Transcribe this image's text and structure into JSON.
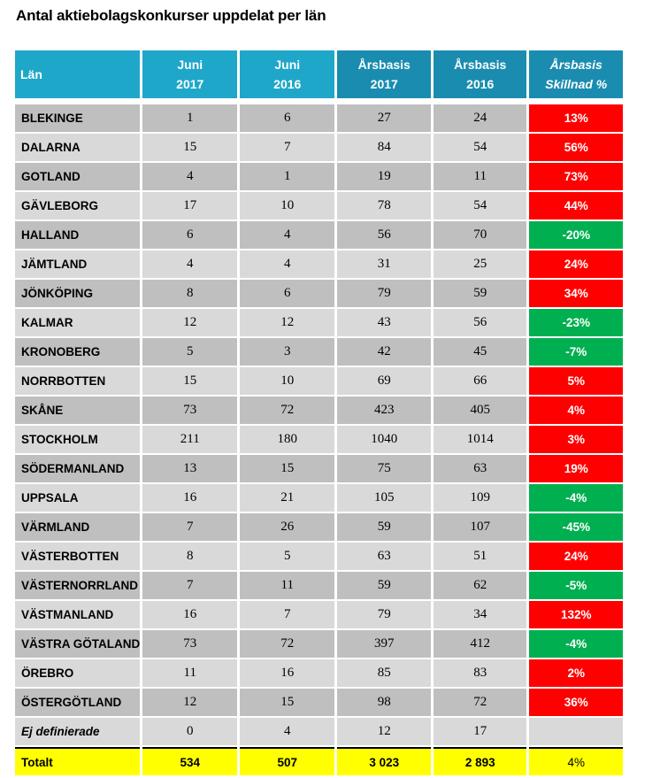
{
  "title": "Antal aktiebolagskonkurser uppdelat per län",
  "headers": [
    {
      "l1": "Län",
      "l2": ""
    },
    {
      "l1": "Juni",
      "l2": "2017"
    },
    {
      "l1": "Juni",
      "l2": "2016"
    },
    {
      "l1": "Årsbasis",
      "l2": "2017"
    },
    {
      "l1": "Årsbasis",
      "l2": "2016"
    },
    {
      "l1": "Årsbasis",
      "l2": "Skillnad %"
    }
  ],
  "colors": {
    "red": "#ff0000",
    "green": "#00b050",
    "total": "#ffff00"
  },
  "rows": [
    {
      "lan": "BLEKINGE",
      "j17": "1",
      "j16": "6",
      "a17": "27",
      "a16": "24",
      "diff": "13%",
      "c": "red"
    },
    {
      "lan": "DALARNA",
      "j17": "15",
      "j16": "7",
      "a17": "84",
      "a16": "54",
      "diff": "56%",
      "c": "red"
    },
    {
      "lan": "GOTLAND",
      "j17": "4",
      "j16": "1",
      "a17": "19",
      "a16": "11",
      "diff": "73%",
      "c": "red"
    },
    {
      "lan": "GÄVLEBORG",
      "j17": "17",
      "j16": "10",
      "a17": "78",
      "a16": "54",
      "diff": "44%",
      "c": "red"
    },
    {
      "lan": "HALLAND",
      "j17": "6",
      "j16": "4",
      "a17": "56",
      "a16": "70",
      "diff": "-20%",
      "c": "green"
    },
    {
      "lan": "JÄMTLAND",
      "j17": "4",
      "j16": "4",
      "a17": "31",
      "a16": "25",
      "diff": "24%",
      "c": "red"
    },
    {
      "lan": "JÖNKÖPING",
      "j17": "8",
      "j16": "6",
      "a17": "79",
      "a16": "59",
      "diff": "34%",
      "c": "red"
    },
    {
      "lan": "KALMAR",
      "j17": "12",
      "j16": "12",
      "a17": "43",
      "a16": "56",
      "diff": "-23%",
      "c": "green"
    },
    {
      "lan": "KRONOBERG",
      "j17": "5",
      "j16": "3",
      "a17": "42",
      "a16": "45",
      "diff": "-7%",
      "c": "green"
    },
    {
      "lan": "NORRBOTTEN",
      "j17": "15",
      "j16": "10",
      "a17": "69",
      "a16": "66",
      "diff": "5%",
      "c": "red"
    },
    {
      "lan": "SKÅNE",
      "j17": "73",
      "j16": "72",
      "a17": "423",
      "a16": "405",
      "diff": "4%",
      "c": "red"
    },
    {
      "lan": "STOCKHOLM",
      "j17": "211",
      "j16": "180",
      "a17": "1040",
      "a16": "1014",
      "diff": "3%",
      "c": "red"
    },
    {
      "lan": "SÖDERMANLAND",
      "j17": "13",
      "j16": "15",
      "a17": "75",
      "a16": "63",
      "diff": "19%",
      "c": "red"
    },
    {
      "lan": "UPPSALA",
      "j17": "16",
      "j16": "21",
      "a17": "105",
      "a16": "109",
      "diff": "-4%",
      "c": "green"
    },
    {
      "lan": "VÄRMLAND",
      "j17": "7",
      "j16": "26",
      "a17": "59",
      "a16": "107",
      "diff": "-45%",
      "c": "green"
    },
    {
      "lan": "VÄSTERBOTTEN",
      "j17": "8",
      "j16": "5",
      "a17": "63",
      "a16": "51",
      "diff": "24%",
      "c": "red"
    },
    {
      "lan": "VÄSTERNORRLAND",
      "j17": "7",
      "j16": "11",
      "a17": "59",
      "a16": "62",
      "diff": "-5%",
      "c": "green"
    },
    {
      "lan": "VÄSTMANLAND",
      "j17": "16",
      "j16": "7",
      "a17": "79",
      "a16": "34",
      "diff": "132%",
      "c": "red"
    },
    {
      "lan": "VÄSTRA GÖTALAND",
      "j17": "73",
      "j16": "72",
      "a17": "397",
      "a16": "412",
      "diff": "-4%",
      "c": "green"
    },
    {
      "lan": "ÖREBRO",
      "j17": "11",
      "j16": "16",
      "a17": "85",
      "a16": "83",
      "diff": "2%",
      "c": "red"
    },
    {
      "lan": "ÖSTERGÖTLAND",
      "j17": "12",
      "j16": "15",
      "a17": "98",
      "a16": "72",
      "diff": "36%",
      "c": "red"
    },
    {
      "lan": "Ej definierade",
      "j17": "0",
      "j16": "4",
      "a17": "12",
      "a16": "17",
      "diff": "",
      "c": ""
    }
  ],
  "total": {
    "lan": "Totalt",
    "j17": "534",
    "j16": "507",
    "a17": "3 023",
    "a16": "2 893",
    "diff": "4%"
  }
}
